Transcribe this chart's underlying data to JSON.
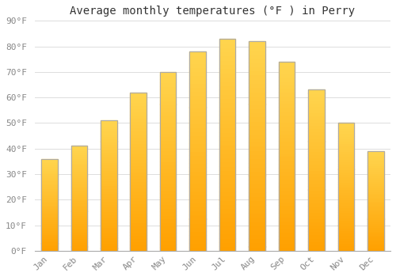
{
  "months": [
    "Jan",
    "Feb",
    "Mar",
    "Apr",
    "May",
    "Jun",
    "Jul",
    "Aug",
    "Sep",
    "Oct",
    "Nov",
    "Dec"
  ],
  "temperatures": [
    36,
    41,
    51,
    62,
    70,
    78,
    83,
    82,
    74,
    63,
    50,
    39
  ],
  "bar_color_top": "#FFD54F",
  "bar_color_bottom": "#FFA000",
  "bar_edge_color": "#AAAAAA",
  "title": "Average monthly temperatures (°F ) in Perry",
  "ylim": [
    0,
    90
  ],
  "yticks": [
    0,
    10,
    20,
    30,
    40,
    50,
    60,
    70,
    80,
    90
  ],
  "ytick_labels": [
    "0°F",
    "10°F",
    "20°F",
    "30°F",
    "40°F",
    "50°F",
    "60°F",
    "70°F",
    "80°F",
    "90°F"
  ],
  "background_color": "#FFFFFF",
  "grid_color": "#DDDDDD",
  "title_fontsize": 10,
  "tick_fontsize": 8,
  "font_family": "monospace",
  "bar_width": 0.55
}
